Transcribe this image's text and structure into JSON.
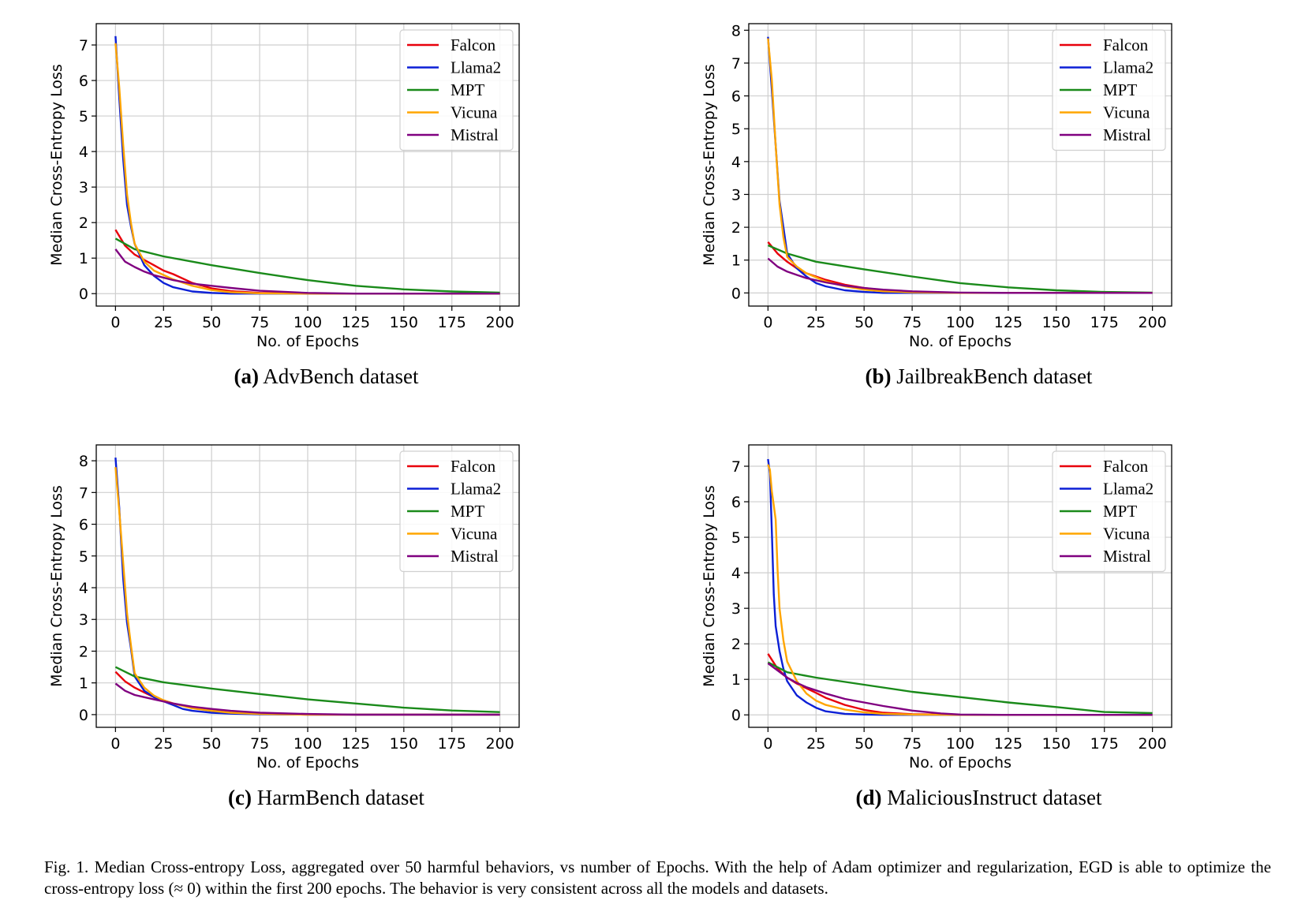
{
  "figure_caption": {
    "label": "Fig. 1.",
    "text": "Median Cross-entropy Loss, aggregated over 50 harmful behaviors, vs number of Epochs. With the help of Adam optimizer and regularization, EGD is able to optimize the cross-entropy loss (≈ 0) within the first 200 epochs. The behavior is very consistent across all the models and datasets."
  },
  "colors": {
    "Falcon": "#e8000b",
    "Llama2": "#0b1fd6",
    "MPT": "#1a8a1a",
    "Vicuna": "#ffa500",
    "Mistral": "#800080"
  },
  "chart_data": [
    {
      "type": "line",
      "panel_label": "(a)",
      "subtitle": "AdvBench dataset",
      "xlabel": "No. of Epochs",
      "ylabel": "Median Cross-Entropy Loss",
      "xlim": [
        -10,
        210
      ],
      "ylim": [
        -0.35,
        7.6
      ],
      "xticks": [
        0,
        25,
        50,
        75,
        100,
        125,
        150,
        175,
        200
      ],
      "yticks": [
        0,
        1,
        2,
        3,
        4,
        5,
        6,
        7
      ],
      "grid": true,
      "legend_position": "top-right",
      "series": [
        {
          "name": "Falcon",
          "x": [
            0,
            5,
            10,
            15,
            20,
            25,
            30,
            40,
            50,
            60,
            75,
            100,
            150,
            200
          ],
          "y": [
            1.8,
            1.35,
            1.1,
            0.95,
            0.8,
            0.65,
            0.55,
            0.3,
            0.15,
            0.07,
            0.02,
            0.0,
            0.0,
            0.0
          ]
        },
        {
          "name": "Llama2",
          "x": [
            0,
            2,
            4,
            6,
            8,
            10,
            15,
            20,
            25,
            30,
            40,
            50,
            60,
            75,
            100,
            200
          ],
          "y": [
            7.25,
            5.5,
            3.8,
            2.5,
            1.9,
            1.4,
            0.8,
            0.5,
            0.3,
            0.18,
            0.06,
            0.02,
            0.0,
            0.0,
            0.0,
            0.0
          ]
        },
        {
          "name": "MPT",
          "x": [
            0,
            10,
            25,
            50,
            75,
            100,
            125,
            150,
            175,
            200
          ],
          "y": [
            1.55,
            1.25,
            1.05,
            0.8,
            0.58,
            0.38,
            0.22,
            0.12,
            0.06,
            0.03
          ]
        },
        {
          "name": "Vicuna",
          "x": [
            0,
            2,
            4,
            6,
            8,
            10,
            15,
            20,
            30,
            40,
            50,
            60,
            75,
            100,
            200
          ],
          "y": [
            7.05,
            5.8,
            4.2,
            2.8,
            2.0,
            1.4,
            0.9,
            0.65,
            0.4,
            0.22,
            0.1,
            0.04,
            0.01,
            0.0,
            0.0
          ]
        },
        {
          "name": "Mistral",
          "x": [
            0,
            5,
            10,
            15,
            20,
            30,
            40,
            50,
            60,
            75,
            100,
            125,
            150,
            200
          ],
          "y": [
            1.25,
            0.9,
            0.75,
            0.62,
            0.52,
            0.38,
            0.28,
            0.22,
            0.16,
            0.08,
            0.02,
            0.0,
            0.0,
            0.0
          ]
        }
      ]
    },
    {
      "type": "line",
      "panel_label": "(b)",
      "subtitle": "JailbreakBench dataset",
      "xlabel": "No. of Epochs",
      "ylabel": "Median Cross-Entropy Loss",
      "xlim": [
        -10,
        210
      ],
      "ylim": [
        -0.4,
        8.2
      ],
      "xticks": [
        0,
        25,
        50,
        75,
        100,
        125,
        150,
        175,
        200
      ],
      "yticks": [
        0,
        1,
        2,
        3,
        4,
        5,
        6,
        7,
        8
      ],
      "grid": true,
      "legend_position": "top-right",
      "series": [
        {
          "name": "Falcon",
          "x": [
            0,
            5,
            10,
            15,
            20,
            30,
            40,
            50,
            60,
            75,
            100,
            125,
            200
          ],
          "y": [
            1.55,
            1.2,
            0.95,
            0.75,
            0.6,
            0.4,
            0.25,
            0.15,
            0.08,
            0.03,
            0.0,
            0.0,
            0.0
          ]
        },
        {
          "name": "Llama2",
          "x": [
            0,
            2,
            4,
            6,
            8,
            10,
            15,
            20,
            25,
            30,
            40,
            50,
            60,
            75,
            100,
            200
          ],
          "y": [
            7.8,
            6.2,
            4.5,
            2.8,
            2.0,
            1.2,
            0.75,
            0.5,
            0.3,
            0.2,
            0.08,
            0.03,
            0.0,
            0.0,
            0.0,
            0.0
          ]
        },
        {
          "name": "MPT",
          "x": [
            0,
            10,
            25,
            50,
            75,
            100,
            125,
            150,
            175,
            200
          ],
          "y": [
            1.45,
            1.2,
            0.95,
            0.72,
            0.5,
            0.3,
            0.17,
            0.08,
            0.03,
            0.01
          ]
        },
        {
          "name": "Vicuna",
          "x": [
            0,
            2,
            4,
            6,
            8,
            10,
            15,
            20,
            30,
            40,
            50,
            60,
            75,
            100,
            200
          ],
          "y": [
            7.75,
            6.5,
            4.5,
            2.7,
            1.7,
            1.1,
            0.8,
            0.6,
            0.35,
            0.2,
            0.1,
            0.05,
            0.02,
            0.0,
            0.0
          ]
        },
        {
          "name": "Mistral",
          "x": [
            0,
            5,
            10,
            15,
            20,
            30,
            40,
            50,
            60,
            75,
            100,
            125,
            200
          ],
          "y": [
            1.05,
            0.8,
            0.65,
            0.55,
            0.45,
            0.32,
            0.22,
            0.15,
            0.1,
            0.05,
            0.01,
            0.0,
            0.0
          ]
        }
      ]
    },
    {
      "type": "line",
      "panel_label": "(c)",
      "subtitle": "HarmBench dataset",
      "xlabel": "No. of Epochs",
      "ylabel": "Median Cross-Entropy Loss",
      "xlim": [
        -10,
        210
      ],
      "ylim": [
        -0.4,
        8.5
      ],
      "xticks": [
        0,
        25,
        50,
        75,
        100,
        125,
        150,
        175,
        200
      ],
      "yticks": [
        0,
        1,
        2,
        3,
        4,
        5,
        6,
        7,
        8
      ],
      "grid": true,
      "legend_position": "top-right",
      "series": [
        {
          "name": "Falcon",
          "x": [
            0,
            5,
            10,
            15,
            20,
            25,
            30,
            40,
            50,
            60,
            75,
            100,
            200
          ],
          "y": [
            1.35,
            1.05,
            0.85,
            0.7,
            0.55,
            0.45,
            0.35,
            0.22,
            0.12,
            0.06,
            0.02,
            0.0,
            0.0
          ]
        },
        {
          "name": "Llama2",
          "x": [
            0,
            2,
            4,
            6,
            8,
            10,
            15,
            20,
            25,
            30,
            35,
            40,
            50,
            60,
            75,
            100,
            200
          ],
          "y": [
            8.1,
            6.5,
            4.3,
            2.9,
            2.1,
            1.2,
            0.75,
            0.55,
            0.42,
            0.3,
            0.18,
            0.12,
            0.06,
            0.03,
            0.01,
            0.0,
            0.0
          ]
        },
        {
          "name": "MPT",
          "x": [
            0,
            10,
            25,
            50,
            75,
            100,
            125,
            150,
            175,
            200
          ],
          "y": [
            1.5,
            1.2,
            1.02,
            0.82,
            0.65,
            0.48,
            0.35,
            0.22,
            0.13,
            0.08
          ]
        },
        {
          "name": "Vicuna",
          "x": [
            0,
            2,
            4,
            6,
            8,
            10,
            15,
            20,
            25,
            30,
            40,
            50,
            60,
            75,
            100,
            200
          ],
          "y": [
            7.8,
            6.4,
            4.8,
            3.2,
            2.2,
            1.3,
            0.85,
            0.6,
            0.45,
            0.35,
            0.2,
            0.12,
            0.06,
            0.02,
            0.0,
            0.0
          ]
        },
        {
          "name": "Mistral",
          "x": [
            0,
            5,
            10,
            15,
            20,
            30,
            40,
            50,
            60,
            75,
            100,
            125,
            200
          ],
          "y": [
            0.98,
            0.75,
            0.62,
            0.55,
            0.48,
            0.35,
            0.25,
            0.18,
            0.12,
            0.06,
            0.02,
            0.0,
            0.0
          ]
        }
      ]
    },
    {
      "type": "line",
      "panel_label": "(d)",
      "subtitle": "MaliciousInstruct dataset",
      "xlabel": "No. of Epochs",
      "ylabel": "Median Cross-Entropy Loss",
      "xlim": [
        -10,
        210
      ],
      "ylim": [
        -0.35,
        7.6
      ],
      "xticks": [
        0,
        25,
        50,
        75,
        100,
        125,
        150,
        175,
        200
      ],
      "yticks": [
        0,
        1,
        2,
        3,
        4,
        5,
        6,
        7
      ],
      "grid": true,
      "legend_position": "top-right",
      "series": [
        {
          "name": "Falcon",
          "x": [
            0,
            5,
            10,
            15,
            20,
            25,
            30,
            40,
            50,
            60,
            75,
            100,
            200
          ],
          "y": [
            1.72,
            1.3,
            1.05,
            0.88,
            0.75,
            0.62,
            0.48,
            0.28,
            0.14,
            0.06,
            0.02,
            0.0,
            0.0
          ]
        },
        {
          "name": "Llama2",
          "x": [
            0,
            1,
            2,
            3,
            4,
            6,
            8,
            10,
            15,
            20,
            25,
            30,
            40,
            50,
            60,
            75,
            200
          ],
          "y": [
            7.2,
            6.8,
            5.2,
            3.4,
            2.5,
            1.8,
            1.3,
            0.95,
            0.55,
            0.35,
            0.2,
            0.1,
            0.03,
            0.01,
            0.0,
            0.0,
            0.0
          ]
        },
        {
          "name": "MPT",
          "x": [
            0,
            10,
            25,
            50,
            75,
            100,
            125,
            150,
            175,
            200
          ],
          "y": [
            1.48,
            1.2,
            1.05,
            0.85,
            0.65,
            0.5,
            0.35,
            0.22,
            0.08,
            0.05
          ]
        },
        {
          "name": "Vicuna",
          "x": [
            0,
            1,
            2,
            3,
            4,
            5,
            6,
            8,
            10,
            15,
            20,
            25,
            30,
            40,
            50,
            60,
            75,
            100,
            200
          ],
          "y": [
            7.05,
            6.9,
            6.3,
            5.9,
            5.5,
            4.1,
            3.0,
            2.1,
            1.5,
            0.95,
            0.6,
            0.4,
            0.28,
            0.15,
            0.07,
            0.03,
            0.01,
            0.0,
            0.0
          ]
        },
        {
          "name": "Mistral",
          "x": [
            0,
            5,
            10,
            15,
            20,
            30,
            40,
            50,
            60,
            75,
            90,
            100,
            125,
            200
          ],
          "y": [
            1.45,
            1.25,
            1.05,
            0.9,
            0.78,
            0.6,
            0.45,
            0.35,
            0.25,
            0.12,
            0.04,
            0.01,
            0.0,
            0.0
          ]
        }
      ]
    }
  ]
}
